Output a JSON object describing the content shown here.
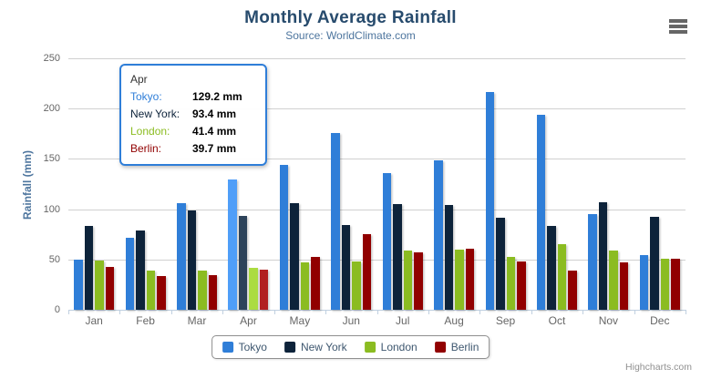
{
  "chart_data": {
    "type": "bar",
    "title": "Monthly Average Rainfall",
    "subtitle": "Source: WorldClimate.com",
    "xlabel": "",
    "ylabel": "Rainfall (mm)",
    "ylim": [
      0,
      250
    ],
    "ytick_step": 50,
    "ytick_labels": [
      "0",
      "50",
      "100",
      "150",
      "200",
      "250"
    ],
    "grid": true,
    "legend_position": "bottom",
    "categories": [
      "Jan",
      "Feb",
      "Mar",
      "Apr",
      "May",
      "Jun",
      "Jul",
      "Aug",
      "Sep",
      "Oct",
      "Nov",
      "Dec"
    ],
    "series": [
      {
        "name": "Tokyo",
        "color": "#2f7ed8",
        "values": [
          49.9,
          71.5,
          106.4,
          129.2,
          144.0,
          176.0,
          135.6,
          148.5,
          216.4,
          194.1,
          95.6,
          54.4
        ]
      },
      {
        "name": "New York",
        "color": "#0d233a",
        "values": [
          83.6,
          78.8,
          98.5,
          93.4,
          106.0,
          84.5,
          105.0,
          104.3,
          91.2,
          83.5,
          106.6,
          92.3
        ]
      },
      {
        "name": "London",
        "color": "#8bbc21",
        "values": [
          48.9,
          38.8,
          39.3,
          41.4,
          47.0,
          48.3,
          59.0,
          59.6,
          52.4,
          65.2,
          59.3,
          51.2
        ]
      },
      {
        "name": "Berlin",
        "color": "#910000",
        "values": [
          42.4,
          33.2,
          34.5,
          39.7,
          52.6,
          75.5,
          57.4,
          60.4,
          47.6,
          39.1,
          46.8,
          51.1
        ]
      }
    ],
    "hovered_category": "Apr",
    "hovered_category_index": 3,
    "style": {
      "title_color": "#274b6d",
      "subtitle_color": "#4d759e",
      "axis_title_color": "#4d759e",
      "tick_label_color": "#666666",
      "grid_color": "#d0d0d0",
      "axis_line_color": "#c0d0e0",
      "legend_text_color": "#3e576f",
      "legend_border_color": "#909090"
    }
  },
  "tooltip": {
    "header": "Apr",
    "border_color": "#2f7ed8",
    "rows": [
      {
        "label": "Tokyo:",
        "value": "129.2 mm",
        "color": "#2f7ed8"
      },
      {
        "label": "New York:",
        "value": "93.4 mm",
        "color": "#0d233a"
      },
      {
        "label": "London:",
        "value": "41.4 mm",
        "color": "#8bbc21"
      },
      {
        "label": "Berlin:",
        "value": "39.7 mm",
        "color": "#910000"
      }
    ]
  },
  "legend": {
    "items": [
      {
        "label": "Tokyo",
        "color": "#2f7ed8"
      },
      {
        "label": "New York",
        "color": "#0d233a"
      },
      {
        "label": "London",
        "color": "#8bbc21"
      },
      {
        "label": "Berlin",
        "color": "#910000"
      }
    ]
  },
  "credits": {
    "label": "Highcharts.com"
  }
}
